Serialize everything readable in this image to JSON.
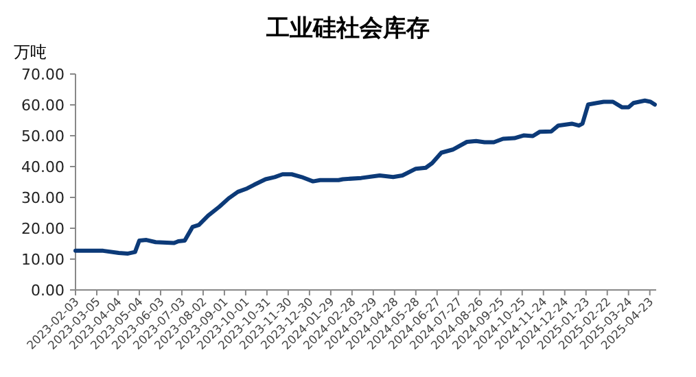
{
  "chart_data": {
    "type": "line",
    "title": "工业硅社会库存",
    "ylabel": "万吨",
    "x": [
      "2023-02-03",
      "2023-03-14",
      "2023-04-05",
      "2023-04-18",
      "2023-04-28",
      "2023-05-04",
      "2023-05-14",
      "2023-05-27",
      "2023-06-22",
      "2023-06-28",
      "2023-07-07",
      "2023-07-18",
      "2023-07-27",
      "2023-08-09",
      "2023-08-25",
      "2023-09-07",
      "2023-09-20",
      "2023-10-03",
      "2023-10-13",
      "2023-10-29",
      "2023-11-11",
      "2023-11-22",
      "2023-12-05",
      "2023-12-19",
      "2024-01-04",
      "2024-01-14",
      "2024-01-27",
      "2024-02-09",
      "2024-02-15",
      "2024-03-12",
      "2024-04-07",
      "2024-04-26",
      "2024-05-09",
      "2024-05-28",
      "2024-06-11",
      "2024-06-20",
      "2024-07-03",
      "2024-07-19",
      "2024-08-08",
      "2024-08-21",
      "2024-09-02",
      "2024-09-15",
      "2024-09-28",
      "2024-10-14",
      "2024-10-27",
      "2024-11-09",
      "2024-11-19",
      "2024-12-05",
      "2024-12-15",
      "2025-01-03",
      "2025-01-13",
      "2025-01-18",
      "2025-01-26",
      "2025-02-07",
      "2025-02-17",
      "2025-03-02",
      "2025-03-15",
      "2025-03-24",
      "2025-03-31",
      "2025-04-16",
      "2025-04-24",
      "2025-04-30"
    ],
    "series": [
      {
        "color": "#0c3a78",
        "values": [
          12.7,
          12.7,
          12.0,
          11.8,
          12.3,
          16.0,
          16.2,
          15.5,
          15.2,
          15.8,
          16.0,
          20.4,
          21.1,
          24.1,
          27.0,
          29.7,
          31.8,
          32.9,
          34.1,
          35.9,
          36.6,
          37.5,
          37.5,
          36.6,
          35.2,
          35.6,
          35.6,
          35.6,
          35.9,
          36.3,
          37.1,
          36.6,
          37.1,
          39.3,
          39.6,
          41.1,
          44.5,
          45.5,
          48.0,
          48.3,
          47.9,
          47.9,
          49.0,
          49.2,
          50.1,
          49.9,
          51.3,
          51.4,
          53.3,
          53.9,
          53.3,
          53.9,
          60.1,
          60.6,
          61.0,
          61.0,
          59.2,
          59.2,
          60.6,
          61.4,
          61.0,
          60.1
        ]
      }
    ],
    "xlim": [
      "2023-02-03",
      "2025-05-02"
    ],
    "xticks": [
      "2023-02-03",
      "2023-03-05",
      "2023-04-04",
      "2023-05-04",
      "2023-06-03",
      "2023-07-03",
      "2023-08-02",
      "2023-09-01",
      "2023-10-01",
      "2023-10-31",
      "2023-11-30",
      "2023-12-30",
      "2024-01-29",
      "2024-02-28",
      "2024-03-29",
      "2024-04-28",
      "2024-05-28",
      "2024-06-27",
      "2024-07-27",
      "2024-08-26",
      "2024-09-25",
      "2024-10-25",
      "2024-11-24",
      "2024-12-24",
      "2025-01-23",
      "2025-02-22",
      "2025-03-24",
      "2025-04-23"
    ],
    "ylim": [
      0,
      70
    ],
    "yticks": [
      {
        "value": 0,
        "label": "0.00"
      },
      {
        "value": 10,
        "label": "10.00"
      },
      {
        "value": 20,
        "label": "20.00"
      },
      {
        "value": 30,
        "label": "30.00"
      },
      {
        "value": 40,
        "label": "40.00"
      },
      {
        "value": 50,
        "label": "50.00"
      },
      {
        "value": 60,
        "label": "60.00"
      },
      {
        "value": 70,
        "label": "70.00"
      }
    ],
    "grid": false,
    "marker": "none",
    "line_style": "solid"
  }
}
